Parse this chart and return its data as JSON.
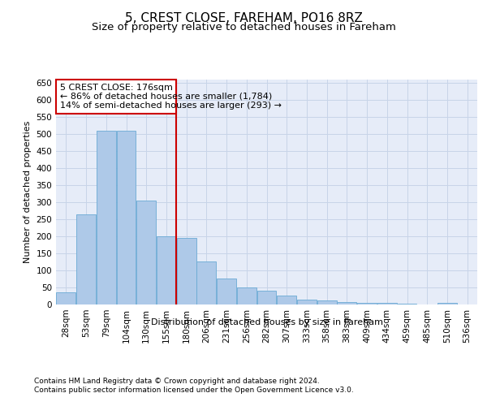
{
  "title": "5, CREST CLOSE, FAREHAM, PO16 8RZ",
  "subtitle": "Size of property relative to detached houses in Fareham",
  "xlabel": "Distribution of detached houses by size in Fareham",
  "ylabel": "Number of detached properties",
  "footer_line1": "Contains HM Land Registry data © Crown copyright and database right 2024.",
  "footer_line2": "Contains public sector information licensed under the Open Government Licence v3.0.",
  "annotation_line1": "5 CREST CLOSE: 176sqm",
  "annotation_line2": "← 86% of detached houses are smaller (1,784)",
  "annotation_line3": "14% of semi-detached houses are larger (293) →",
  "bar_color": "#aec9e8",
  "bar_edge_color": "#6aaad4",
  "vline_color": "#cc0000",
  "vline_x_idx": 6,
  "categories": [
    "28sqm",
    "53sqm",
    "79sqm",
    "104sqm",
    "130sqm",
    "155sqm",
    "180sqm",
    "206sqm",
    "231sqm",
    "256sqm",
    "282sqm",
    "307sqm",
    "333sqm",
    "358sqm",
    "383sqm",
    "409sqm",
    "434sqm",
    "459sqm",
    "485sqm",
    "510sqm",
    "536sqm"
  ],
  "values": [
    35,
    265,
    510,
    510,
    305,
    200,
    195,
    125,
    75,
    50,
    40,
    25,
    15,
    12,
    8,
    5,
    4,
    2,
    1,
    5,
    1
  ],
  "ylim": [
    0,
    660
  ],
  "yticks": [
    0,
    50,
    100,
    150,
    200,
    250,
    300,
    350,
    400,
    450,
    500,
    550,
    600,
    650
  ],
  "grid_color": "#c8d4e8",
  "bg_color": "#e6ecf8",
  "fig_bg_color": "#ffffff",
  "title_fontsize": 11,
  "subtitle_fontsize": 9.5,
  "annotation_fontsize": 8,
  "tick_fontsize": 7.5,
  "ylabel_fontsize": 8
}
